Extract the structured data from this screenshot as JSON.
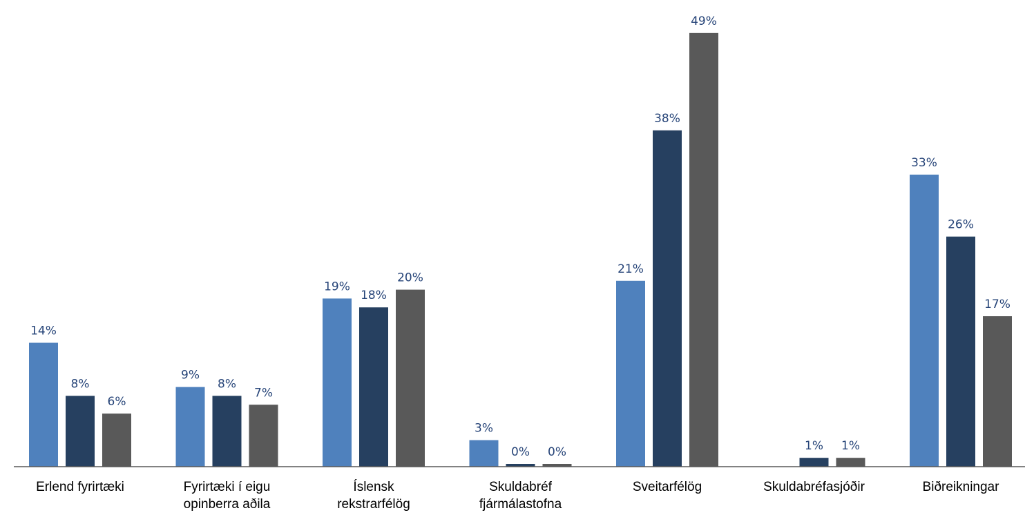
{
  "chart_data": {
    "type": "bar",
    "categories": [
      [
        "Erlend fyrirtæki"
      ],
      [
        "Fyrirtæki í eigu",
        "opinberra aðila"
      ],
      [
        "Íslensk",
        "rekstrarfélög"
      ],
      [
        "Skuldabréf",
        "fjármálastofna"
      ],
      [
        "Sveitarfélög"
      ],
      [
        "Skuldabréfasjóðir"
      ],
      [
        "Biðreikningar"
      ]
    ],
    "series": [
      {
        "color": "#4F81BD",
        "values": [
          14,
          9,
          19,
          3,
          21,
          null,
          33
        ],
        "labels": [
          "14%",
          "9%",
          "19%",
          "3%",
          "21%",
          "",
          "33%"
        ]
      },
      {
        "color": "#264060",
        "values": [
          8,
          8,
          18,
          0,
          38,
          1,
          26
        ],
        "labels": [
          "8%",
          "8%",
          "18%",
          "0%",
          "38%",
          "1%",
          "26%"
        ]
      },
      {
        "color": "#595959",
        "values": [
          6,
          7,
          20,
          0,
          49,
          1,
          17
        ],
        "labels": [
          "6%",
          "7%",
          "20%",
          "0%",
          "49%",
          "1%",
          "17%"
        ]
      }
    ],
    "ylim": [
      0,
      50
    ],
    "unit": "%",
    "grid": false,
    "legend": "none",
    "axis_color": "#595959",
    "label_color": "#264478"
  }
}
